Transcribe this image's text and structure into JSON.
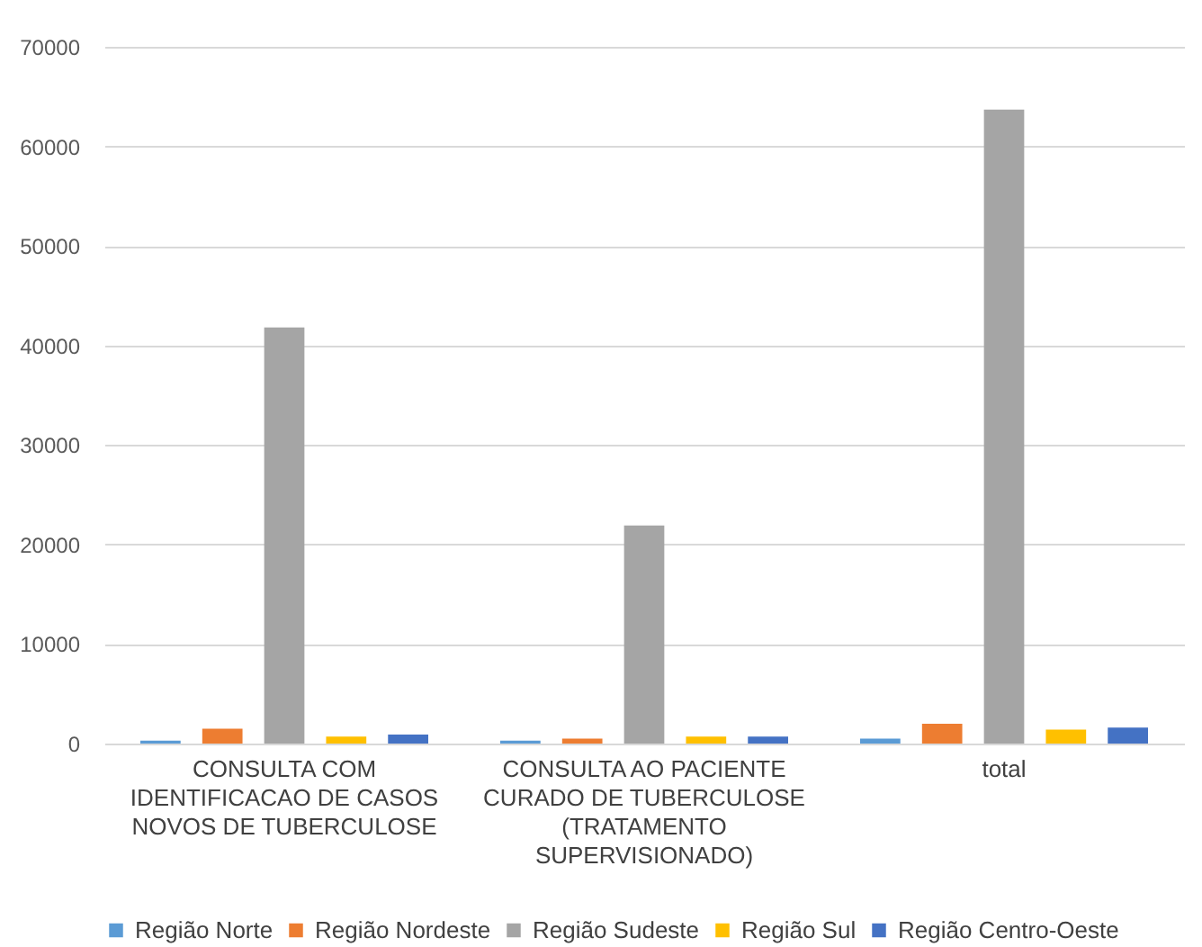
{
  "chart_data": {
    "type": "bar",
    "categories": [
      "CONSULTA COM\nIDENTIFICACAO DE CASOS\nNOVOS DE TUBERCULOSE",
      "CONSULTA AO PACIENTE\nCURADO DE TUBERCULOSE\n(TRATAMENTO\nSUPERVISIONADO)",
      "total"
    ],
    "series": [
      {
        "name": "Região Norte",
        "color": "#5b9bd5",
        "values": [
          300,
          300,
          500
        ]
      },
      {
        "name": "Região Nordeste",
        "color": "#ed7d31",
        "values": [
          1500,
          500,
          2000
        ]
      },
      {
        "name": "Região Sudeste",
        "color": "#a5a5a5",
        "values": [
          41800,
          21900,
          63700
        ]
      },
      {
        "name": "Região Sul",
        "color": "#ffc000",
        "values": [
          700,
          700,
          1400
        ]
      },
      {
        "name": "Região Centro-Oeste",
        "color": "#4472c4",
        "values": [
          900,
          700,
          1600
        ]
      }
    ],
    "ylim": [
      0,
      70000
    ],
    "yticks": [
      0,
      10000,
      20000,
      30000,
      40000,
      50000,
      60000,
      70000
    ],
    "grid": "y",
    "legend": "bottom"
  }
}
